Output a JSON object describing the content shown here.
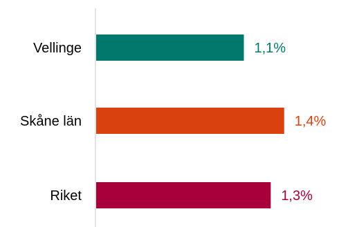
{
  "chart_data": {
    "type": "bar",
    "orientation": "horizontal",
    "title": "",
    "xlabel": "",
    "ylabel": "",
    "categories": [
      "Vellinge",
      "Skåne län",
      "Riket"
    ],
    "values": [
      1.1,
      1.4,
      1.3
    ],
    "value_labels": [
      "1,1%",
      "1,4%",
      "1,3%"
    ],
    "colors": [
      "#00786b",
      "#d9410f",
      "#a8003a"
    ],
    "xlim": [
      0,
      1.5
    ],
    "grid": false,
    "legend": "none"
  }
}
